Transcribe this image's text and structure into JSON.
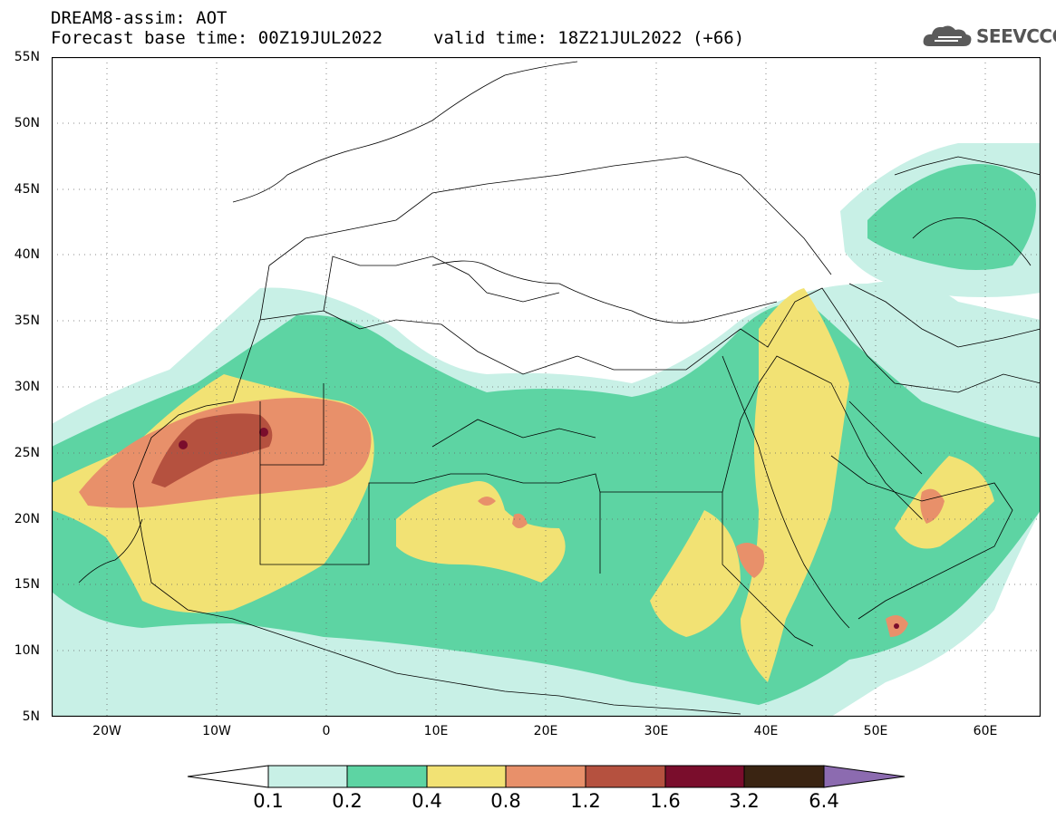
{
  "header": {
    "title_line1": "DREAM8-assim: AOT",
    "title_line2": "Forecast base time: 00Z19JUL2022",
    "valid_time": "valid time: 18Z21JUL2022 (+66)",
    "logo_text": "SEEVCCC",
    "logo_icon": "cloud-icon"
  },
  "map": {
    "lat_labels": [
      "55N",
      "50N",
      "45N",
      "40N",
      "35N",
      "30N",
      "25N",
      "20N",
      "15N",
      "10N",
      "5N"
    ],
    "lon_labels": [
      "20W",
      "10W",
      "0",
      "10E",
      "20E",
      "30E",
      "40E",
      "50E",
      "60E"
    ],
    "lon_range": [
      -25,
      65
    ],
    "lat_range": [
      5,
      55
    ],
    "gridlines": "dotted"
  },
  "colorbar": {
    "labels": [
      "0.1",
      "0.2",
      "0.4",
      "0.8",
      "1.2",
      "1.6",
      "3.2",
      "6.4"
    ],
    "colors": [
      "#c8f0e6",
      "#5dd4a3",
      "#f2e274",
      "#e8906a",
      "#b5513f",
      "#7a0d2c",
      "#3a2412",
      "#8c6bb0"
    ],
    "below_color": "#ffffff"
  }
}
